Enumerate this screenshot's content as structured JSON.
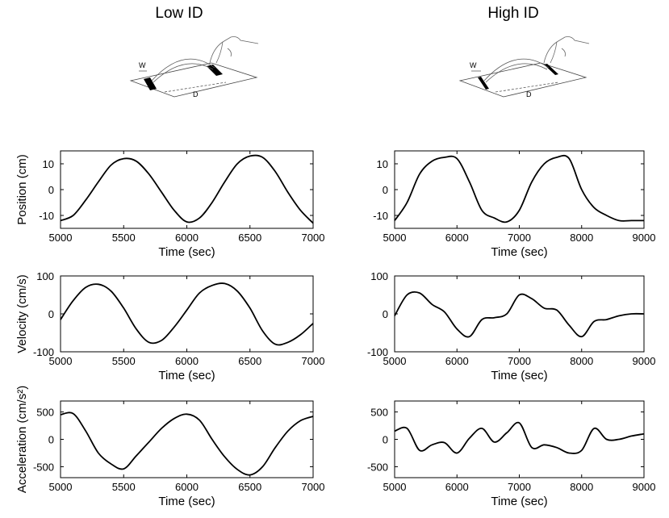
{
  "columns": [
    {
      "title": "Low ID"
    },
    {
      "title": "High ID"
    }
  ],
  "illustration": {
    "w_label": "W",
    "d_label": "D"
  },
  "chart_data": [
    {
      "type": "line",
      "name": "low-position",
      "xlabel": "Time (sec)",
      "ylabel": "Position (cm)",
      "xlim": [
        5000,
        7000
      ],
      "ylim": [
        -15,
        15
      ],
      "xticks": [
        5000,
        5500,
        6000,
        6500,
        7000
      ],
      "yticks": [
        -10,
        0,
        10
      ],
      "series": [
        {
          "x": [
            5000,
            5100,
            5200,
            5300,
            5400,
            5500,
            5600,
            5700,
            5800,
            5900,
            6000,
            6100,
            6200,
            6300,
            6400,
            6500,
            6600,
            6700,
            6800,
            6900,
            7000
          ],
          "y": [
            -12,
            -10,
            -4,
            3,
            9.5,
            12,
            11,
            6,
            -1,
            -8,
            -12.5,
            -11,
            -5,
            3,
            10,
            13,
            12.5,
            7,
            -1,
            -8,
            -13
          ]
        }
      ]
    },
    {
      "type": "line",
      "name": "high-position",
      "xlabel": "Time (sec)",
      "ylabel": "",
      "xlim": [
        5000,
        9000
      ],
      "ylim": [
        -15,
        15
      ],
      "xticks": [
        5000,
        6000,
        7000,
        8000,
        9000
      ],
      "yticks": [
        -10,
        0,
        10
      ],
      "series": [
        {
          "x": [
            5000,
            5200,
            5400,
            5600,
            5800,
            6000,
            6200,
            6400,
            6600,
            6800,
            7000,
            7200,
            7400,
            7600,
            7800,
            8000,
            8200,
            8400,
            8600,
            8800,
            9000
          ],
          "y": [
            -12,
            -5,
            6,
            11,
            12.5,
            12,
            3,
            -8,
            -11,
            -12.5,
            -8,
            3,
            10,
            12.5,
            12,
            0,
            -7,
            -10,
            -12,
            -12,
            -12
          ]
        }
      ]
    },
    {
      "type": "line",
      "name": "low-velocity",
      "xlabel": "Time (sec)",
      "ylabel": "Velocity (cm/s)",
      "xlim": [
        5000,
        7000
      ],
      "ylim": [
        -100,
        100
      ],
      "xticks": [
        5000,
        5500,
        6000,
        6500,
        7000
      ],
      "yticks": [
        -100,
        0,
        100
      ],
      "series": [
        {
          "x": [
            5000,
            5100,
            5200,
            5300,
            5400,
            5500,
            5600,
            5700,
            5800,
            5900,
            6000,
            6100,
            6200,
            6300,
            6400,
            6500,
            6600,
            6700,
            6800,
            6900,
            7000
          ],
          "y": [
            -15,
            35,
            70,
            78,
            60,
            15,
            -40,
            -75,
            -70,
            -35,
            10,
            55,
            75,
            80,
            60,
            15,
            -45,
            -80,
            -75,
            -55,
            -25
          ]
        }
      ]
    },
    {
      "type": "line",
      "name": "high-velocity",
      "xlabel": "Time (sec)",
      "ylabel": "",
      "xlim": [
        5000,
        9000
      ],
      "ylim": [
        -100,
        100
      ],
      "xticks": [
        5000,
        6000,
        7000,
        8000,
        9000
      ],
      "yticks": [
        -100,
        0,
        100
      ],
      "series": [
        {
          "x": [
            5000,
            5200,
            5400,
            5600,
            5800,
            6000,
            6200,
            6400,
            6600,
            6800,
            7000,
            7200,
            7400,
            7600,
            7800,
            8000,
            8200,
            8400,
            8600,
            8800,
            9000
          ],
          "y": [
            -5,
            50,
            55,
            25,
            5,
            -40,
            -60,
            -15,
            -10,
            0,
            50,
            40,
            15,
            10,
            -30,
            -60,
            -20,
            -15,
            -5,
            0,
            0
          ]
        }
      ]
    },
    {
      "type": "line",
      "name": "low-acceleration",
      "xlabel": "Time (sec)",
      "ylabel": "Acceleration (cm/s²)",
      "xlim": [
        5000,
        7000
      ],
      "ylim": [
        -700,
        700
      ],
      "xticks": [
        5000,
        5500,
        6000,
        6500,
        7000
      ],
      "yticks": [
        -500,
        0,
        500
      ],
      "series": [
        {
          "x": [
            5000,
            5100,
            5200,
            5300,
            5400,
            5500,
            5600,
            5700,
            5800,
            5900,
            6000,
            6100,
            6200,
            6300,
            6400,
            6500,
            6600,
            6700,
            6800,
            6900,
            7000
          ],
          "y": [
            450,
            470,
            150,
            -250,
            -450,
            -540,
            -300,
            -50,
            200,
            380,
            460,
            350,
            0,
            -320,
            -550,
            -650,
            -500,
            -150,
            150,
            340,
            420
          ]
        }
      ]
    },
    {
      "type": "line",
      "name": "high-acceleration",
      "xlabel": "Time (sec)",
      "ylabel": "",
      "xlim": [
        5000,
        9000
      ],
      "ylim": [
        -700,
        700
      ],
      "xticks": [
        5000,
        6000,
        7000,
        8000,
        9000
      ],
      "yticks": [
        -500,
        0,
        500
      ],
      "series": [
        {
          "x": [
            5000,
            5200,
            5400,
            5600,
            5800,
            6000,
            6200,
            6400,
            6600,
            6800,
            7000,
            7200,
            7400,
            7600,
            7800,
            8000,
            8200,
            8400,
            8600,
            8800,
            9000
          ],
          "y": [
            150,
            200,
            -200,
            -100,
            -60,
            -250,
            20,
            200,
            -50,
            120,
            300,
            -150,
            -100,
            -150,
            -250,
            -200,
            200,
            0,
            0,
            60,
            100
          ]
        }
      ]
    }
  ]
}
